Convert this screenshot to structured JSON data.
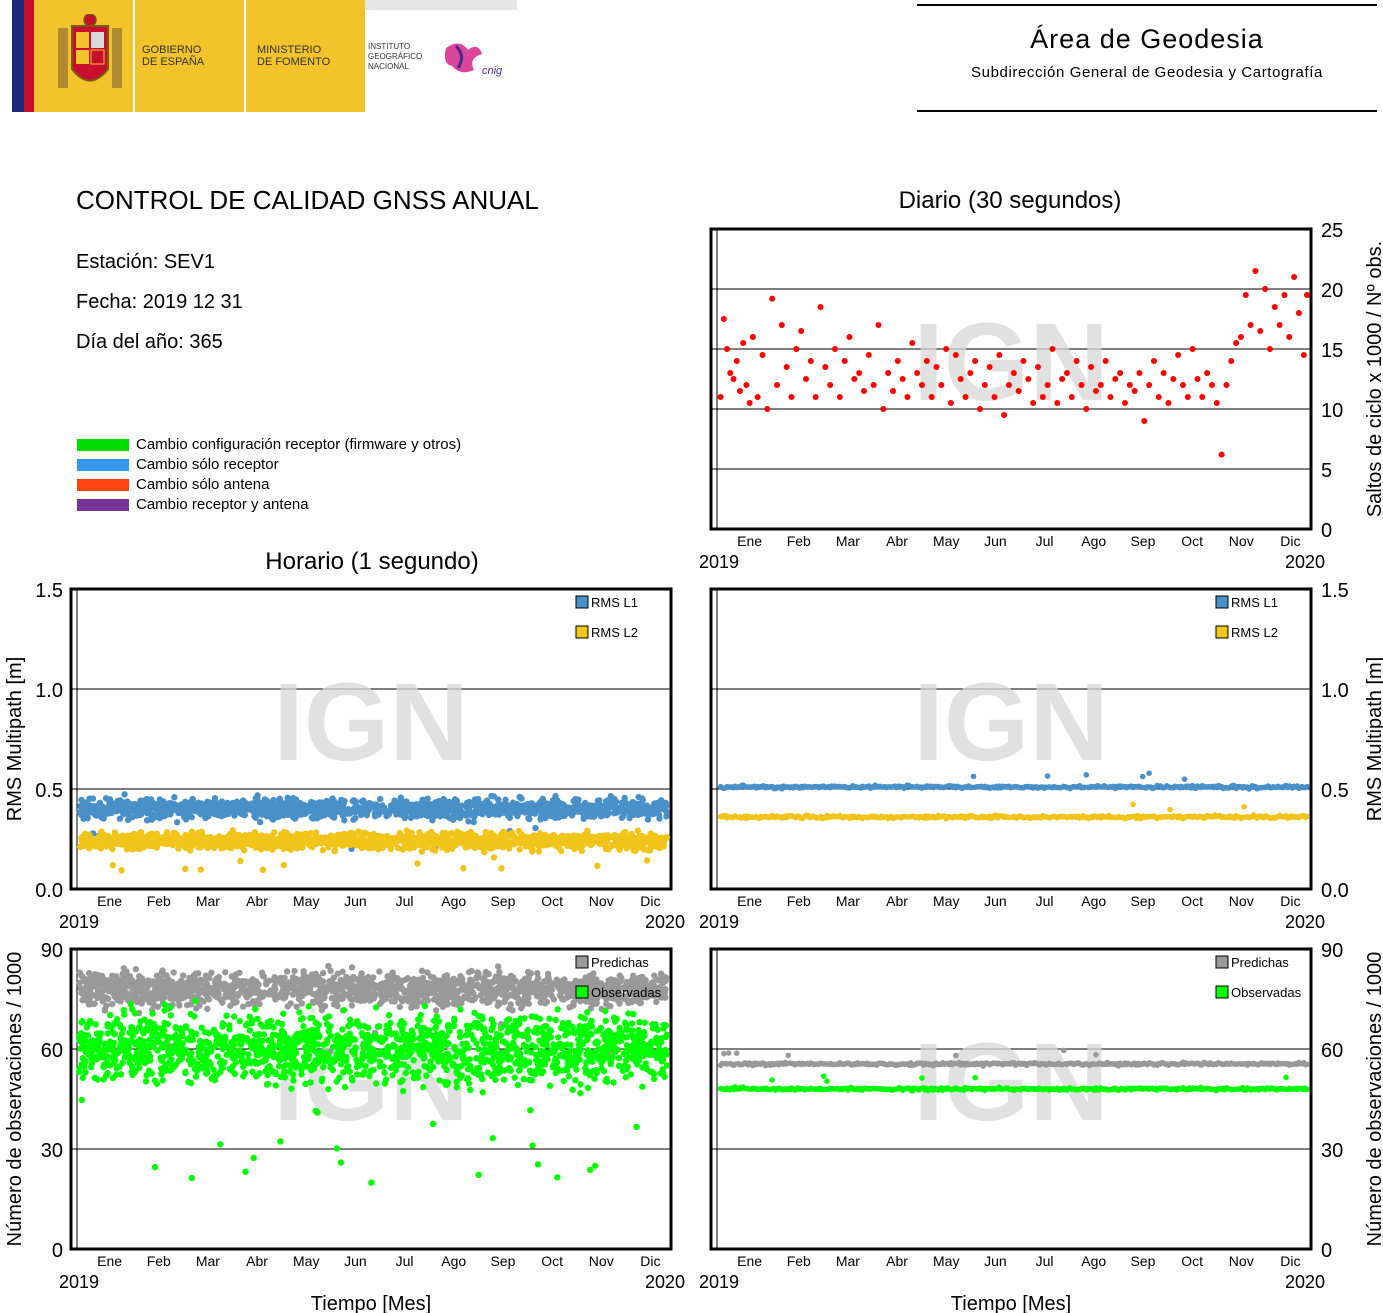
{
  "header": {
    "gov_line1": "GOBIERNO",
    "gov_line2": "DE ESPAÑA",
    "ministry_line1": "MINISTERIO",
    "ministry_line2": "DE FOMENTO",
    "institute_line1": "INSTITUTO",
    "institute_line2": "GEOGRÁFICO",
    "institute_line3": "NACIONAL",
    "cnig_logo": "cnig",
    "area_title": "Área de Geodesia",
    "area_subtitle": "Subdirección General de Geodesia y Cartografía"
  },
  "info": {
    "title": "CONTROL DE CALIDAD GNSS ANUAL",
    "station": "Estación: SEV1",
    "date": "Fecha: 2019 12 31",
    "doy": "Día del año: 365"
  },
  "legend": [
    {
      "label": "Cambio configuración receptor (firmware y otros)",
      "color": "#00dd00"
    },
    {
      "label": "Cambio sólo receptor",
      "color": "#3399ee"
    },
    {
      "label": "Cambio sólo antena",
      "color": "#ff4411"
    },
    {
      "label": "Cambio receptor y antena",
      "color": "#773399"
    }
  ],
  "section_titles": {
    "daily": "Diario (30 segundos)",
    "hourly": "Horario (1 segundo)"
  },
  "months": [
    "Ene",
    "Feb",
    "Mar",
    "Abr",
    "May",
    "Jun",
    "Jul",
    "Ago",
    "Sep",
    "Oct",
    "Nov",
    "Dic"
  ],
  "year_start": "2019",
  "year_end": "2020",
  "watermark": "IGN",
  "xlabel": "Tiempo [Mes]",
  "chart_data": [
    {
      "id": "cycle_slips_daily",
      "type": "scatter",
      "ylabel": "Saltos de ciclo x 1000 / Nº obs.",
      "ylim": [
        0,
        25
      ],
      "yticks": [
        "0",
        "5",
        "10",
        "15",
        "20",
        "25"
      ],
      "grid": true,
      "series": [
        {
          "color": "#ff0000",
          "x": [
            1,
            3,
            5,
            7,
            9,
            11,
            13,
            15,
            17,
            19,
            21,
            24,
            27,
            30,
            33,
            36,
            39,
            42,
            45,
            48,
            51,
            54,
            57,
            60,
            63,
            66,
            69,
            72,
            75,
            78,
            81,
            84,
            87,
            90,
            93,
            96,
            99,
            102,
            105,
            108,
            111,
            114,
            117,
            120,
            123,
            126,
            129,
            132,
            135,
            138,
            141,
            144,
            147,
            150,
            153,
            156,
            159,
            162,
            165,
            168,
            171,
            174,
            177,
            180,
            183,
            186,
            189,
            192,
            195,
            198,
            201,
            204,
            207,
            210,
            213,
            216,
            219,
            222,
            225,
            228,
            231,
            234,
            237,
            240,
            243,
            246,
            249,
            252,
            255,
            258,
            261,
            264,
            267,
            270,
            273,
            276,
            279,
            282,
            285,
            288,
            291,
            294,
            297,
            300,
            303,
            306,
            309,
            312,
            315,
            318,
            321,
            324,
            327,
            330,
            333,
            336,
            339,
            342,
            345,
            348,
            351,
            354,
            357,
            360,
            363,
            365
          ],
          "y": [
            11.0,
            17.5,
            15.0,
            13.0,
            12.5,
            14.0,
            11.5,
            15.5,
            12.0,
            10.5,
            16.0,
            11.0,
            14.5,
            10.0,
            19.2,
            12.0,
            17.0,
            13.5,
            11.0,
            15.0,
            16.5,
            12.5,
            14.0,
            11.0,
            18.5,
            13.5,
            12.0,
            15.0,
            11.0,
            14.0,
            16.0,
            12.5,
            13.0,
            11.5,
            14.5,
            12.0,
            17.0,
            10.0,
            13.0,
            11.5,
            14.0,
            12.5,
            11.0,
            15.5,
            13.0,
            12.0,
            14.0,
            11.0,
            13.5,
            12.0,
            15.0,
            10.5,
            14.5,
            12.5,
            11.0,
            13.0,
            14.0,
            10.0,
            12.0,
            13.5,
            11.0,
            14.5,
            9.5,
            12.0,
            13.0,
            11.5,
            14.0,
            12.5,
            10.5,
            13.5,
            11.0,
            12.0,
            15.0,
            10.5,
            12.5,
            13.0,
            11.0,
            14.0,
            12.0,
            10.0,
            13.5,
            11.5,
            12.0,
            14.0,
            11.0,
            12.5,
            13.0,
            10.5,
            12.0,
            11.5,
            13.0,
            9.0,
            12.0,
            14.0,
            11.0,
            13.0,
            10.5,
            12.5,
            14.5,
            12.0,
            11.0,
            15.0,
            12.5,
            11.0,
            13.0,
            12.0,
            10.5,
            6.2,
            12.0,
            14.0,
            15.5,
            16.0,
            19.5,
            17.0,
            21.5,
            16.5,
            20.0,
            15.0,
            18.5,
            17.0,
            19.5,
            16.0,
            21.0,
            18.0,
            14.5,
            19.5
          ]
        }
      ]
    },
    {
      "id": "multipath_hourly",
      "type": "scatter",
      "ylabel": "RMS Multipath [m]",
      "ylim": [
        0,
        1.5
      ],
      "yticks": [
        "0.0",
        "0.5",
        "1.0",
        "1.5"
      ],
      "grid": true,
      "legend_position": "top-right",
      "series": [
        {
          "name": "RMS L1",
          "color": "#4a90c8",
          "band": [
            0.32,
            0.47
          ],
          "mean": 0.4
        },
        {
          "name": "RMS L2",
          "color": "#f0c419",
          "band": [
            0.18,
            0.3
          ],
          "mean": 0.24
        }
      ]
    },
    {
      "id": "multipath_daily",
      "type": "scatter",
      "ylabel": "RMS Multipath [m]",
      "ylim": [
        0,
        1.5
      ],
      "yticks": [
        "0.0",
        "0.5",
        "1.0",
        "1.5"
      ],
      "grid": true,
      "legend_position": "top-right",
      "series": [
        {
          "name": "RMS L1",
          "color": "#4a90c8",
          "mean": 0.51
        },
        {
          "name": "RMS L2",
          "color": "#f0c419",
          "mean": 0.36
        }
      ]
    },
    {
      "id": "observations_hourly",
      "type": "scatter",
      "ylabel": "Número de observaciones / 1000",
      "ylim": [
        0,
        90
      ],
      "yticks": [
        "0",
        "30",
        "60",
        "90"
      ],
      "grid": true,
      "legend_position": "top-right",
      "series": [
        {
          "name": "Predichas",
          "color": "#999999",
          "band": [
            70,
            85
          ],
          "mean": 78
        },
        {
          "name": "Observadas",
          "color": "#00ff00",
          "band": [
            44,
            76
          ],
          "mean": 60
        }
      ]
    },
    {
      "id": "observations_daily",
      "type": "scatter",
      "ylabel": "Número de observaciones / 1000",
      "ylim": [
        0,
        90
      ],
      "yticks": [
        "0",
        "30",
        "60",
        "90"
      ],
      "grid": true,
      "legend_position": "top-right",
      "series": [
        {
          "name": "Predichas",
          "color": "#999999",
          "mean": 55.5
        },
        {
          "name": "Observadas",
          "color": "#00ff00",
          "mean": 48
        }
      ]
    }
  ]
}
